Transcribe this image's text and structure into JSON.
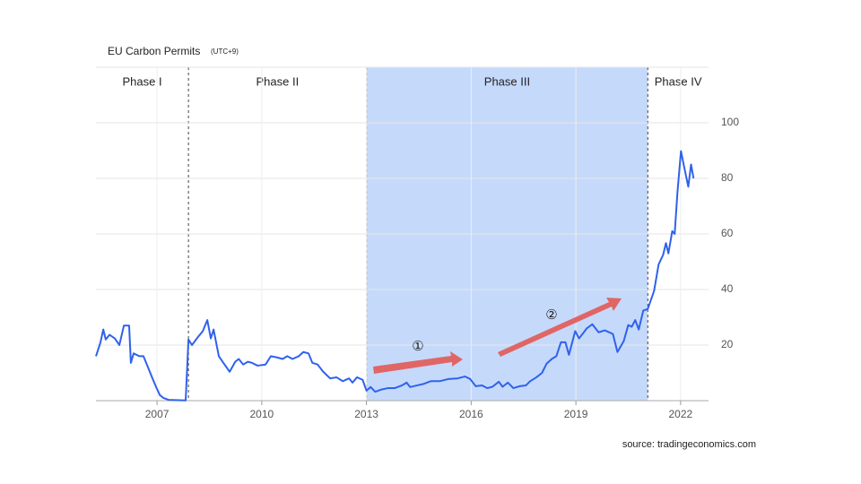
{
  "chart_data": {
    "type": "line",
    "title": "EU Carbon Permits",
    "subtitle": "(UTC+9)",
    "source": "source: tradingeconomics.com",
    "color": "#2f62eb",
    "grid": true,
    "y_axis_side": "right",
    "xlim": [
      2005.25,
      2022.8
    ],
    "xticks": [
      2007,
      2010,
      2013,
      2016,
      2019,
      2022
    ],
    "ylim": [
      0,
      120
    ],
    "yticks": [
      20,
      40,
      60,
      80,
      100
    ],
    "phases": [
      {
        "name": "Phase I",
        "start": 2005.25,
        "end": 2007.9
      },
      {
        "name": "Phase II",
        "start": 2007.9,
        "end": 2013
      },
      {
        "name": "Phase III",
        "start": 2013,
        "end": 2021.06,
        "color": "#c5d9fb"
      },
      {
        "name": "Phase IV",
        "start": 2021.06,
        "end": 2022.8
      }
    ],
    "annotations": [
      {
        "text": "①"
      },
      {
        "text": "②"
      }
    ],
    "x": [
      2005.25,
      2005.38,
      2005.46,
      2005.53,
      2005.64,
      2005.79,
      2005.92,
      2006.05,
      2006.2,
      2006.25,
      2006.33,
      2006.49,
      2006.61,
      2006.74,
      2006.87,
      2006.97,
      2007.08,
      2007.18,
      2007.33,
      2007.82,
      2007.9,
      2008.0,
      2008.16,
      2008.31,
      2008.44,
      2008.54,
      2008.62,
      2008.77,
      2008.9,
      2009.08,
      2009.24,
      2009.34,
      2009.47,
      2009.6,
      2009.72,
      2009.88,
      2010.11,
      2010.26,
      2010.42,
      2010.6,
      2010.73,
      2010.88,
      2011.06,
      2011.19,
      2011.34,
      2011.45,
      2011.6,
      2011.76,
      2011.96,
      2012.14,
      2012.32,
      2012.5,
      2012.6,
      2012.73,
      2012.89,
      2013.0,
      2013.12,
      2013.25,
      2013.43,
      2013.61,
      2013.81,
      2014.02,
      2014.15,
      2014.25,
      2014.46,
      2014.63,
      2014.84,
      2015.1,
      2015.35,
      2015.61,
      2015.82,
      2015.97,
      2016.13,
      2016.31,
      2016.46,
      2016.61,
      2016.79,
      2016.9,
      2017.05,
      2017.21,
      2017.39,
      2017.57,
      2017.69,
      2017.87,
      2018.03,
      2018.16,
      2018.31,
      2018.44,
      2018.57,
      2018.7,
      2018.8,
      2018.98,
      2019.09,
      2019.21,
      2019.31,
      2019.47,
      2019.65,
      2019.83,
      2020.06,
      2020.19,
      2020.37,
      2020.5,
      2020.6,
      2020.7,
      2020.8,
      2020.93,
      2021.06,
      2021.24,
      2021.37,
      2021.5,
      2021.58,
      2021.65,
      2021.76,
      2021.83,
      2021.91,
      2022.01,
      2022.12,
      2022.22,
      2022.3,
      2022.37
    ],
    "values": [
      16,
      21,
      25.6,
      22,
      23.7,
      22.4,
      20,
      27,
      27,
      13.6,
      17,
      16,
      16,
      12,
      8,
      5,
      2,
      1,
      0.3,
      0.1,
      22,
      20,
      22.7,
      25,
      29,
      22.4,
      25.6,
      16,
      13.6,
      10.4,
      14,
      15,
      13,
      14,
      13.6,
      12.6,
      13,
      16,
      15.6,
      15,
      16,
      15,
      16,
      17.5,
      17,
      13.6,
      13,
      10.4,
      8,
      8.4,
      7,
      8,
      6.5,
      8.4,
      7.5,
      3.6,
      4.9,
      3.2,
      4,
      4.5,
      4.5,
      5.5,
      6.5,
      4.9,
      5.5,
      6,
      7,
      7,
      7.8,
      8,
      8.7,
      7.8,
      5.2,
      5.5,
      4.5,
      5,
      6.8,
      5,
      6.5,
      4.5,
      5.2,
      5.5,
      7,
      8.4,
      10,
      13.3,
      15,
      16,
      21,
      21,
      16.5,
      25,
      22.4,
      24.3,
      26,
      27.5,
      24.6,
      25.3,
      24,
      17.5,
      21.4,
      27.2,
      26.6,
      29,
      25.6,
      32.4,
      33,
      39.5,
      49,
      52.5,
      56.7,
      53,
      61,
      60,
      75,
      89.8,
      83,
      77,
      85,
      80
    ]
  }
}
